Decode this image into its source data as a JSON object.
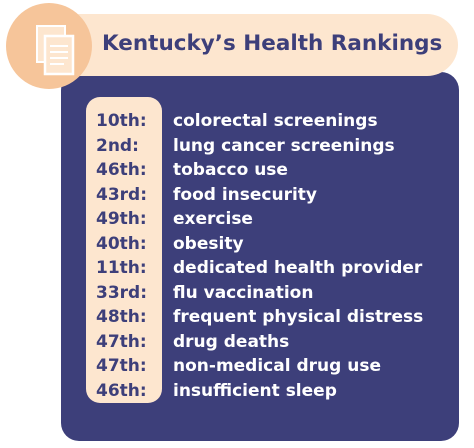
{
  "title": "Kentucky’s Health Rankings",
  "icon": "document-icon",
  "colors": {
    "navy": "#3d3f7a",
    "peach": "#f6c59a",
    "cream": "#fde6cf",
    "white": "#ffffff"
  },
  "rankings": [
    {
      "rank": "10th:",
      "label": "colorectal screenings"
    },
    {
      "rank": "2nd:",
      "label": "lung cancer screenings"
    },
    {
      "rank": "46th:",
      "label": "tobacco use"
    },
    {
      "rank": "43rd:",
      "label": "food insecurity"
    },
    {
      "rank": "49th:",
      "label": "exercise"
    },
    {
      "rank": "40th:",
      "label": "obesity"
    },
    {
      "rank": "11th:",
      "label": "dedicated health provider"
    },
    {
      "rank": "33rd:",
      "label": "flu vaccination"
    },
    {
      "rank": "48th:",
      "label": "frequent physical distress"
    },
    {
      "rank": "47th:",
      "label": "drug deaths"
    },
    {
      "rank": "47th:",
      "label": "non-medical drug use"
    },
    {
      "rank": "46th:",
      "label": "insufficient sleep"
    }
  ]
}
